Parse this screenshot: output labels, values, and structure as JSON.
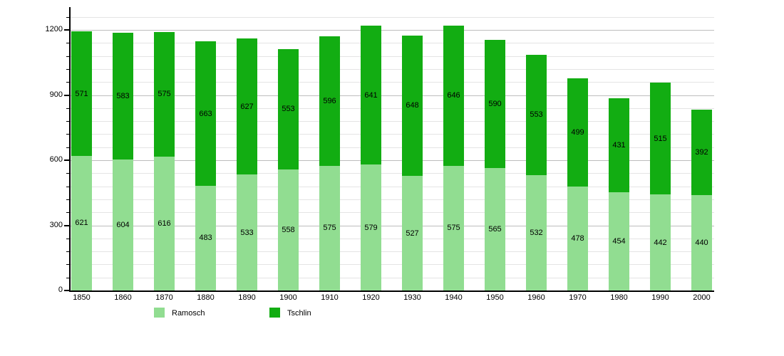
{
  "chart_data": {
    "type": "bar",
    "stacked": true,
    "categories": [
      "1850",
      "1860",
      "1870",
      "1880",
      "1890",
      "1900",
      "1910",
      "1920",
      "1930",
      "1940",
      "1950",
      "1960",
      "1970",
      "1980",
      "1990",
      "2000"
    ],
    "series": [
      {
        "name": "Ramosch",
        "color": "#91dd91",
        "values": [
          621,
          604,
          616,
          483,
          533,
          558,
          575,
          579,
          527,
          575,
          565,
          532,
          478,
          454,
          442,
          440
        ]
      },
      {
        "name": "Tschlin",
        "color": "#12ad12",
        "values": [
          571,
          583,
          575,
          663,
          627,
          553,
          596,
          641,
          648,
          646,
          590,
          553,
          499,
          431,
          515,
          392
        ]
      }
    ],
    "xlabel": "",
    "ylabel": "",
    "title": "",
    "ylim": [
      0,
      1260
    ],
    "yticks_major": [
      0,
      300,
      600,
      900,
      1200
    ],
    "ytick_minor_step": 60,
    "grid": true,
    "bar_value_labels": true,
    "legend_position": "bottom"
  },
  "colors": {
    "ramosch": "#91dd91",
    "tschlin": "#12ad12",
    "grid_minor": "#e4e4e4",
    "grid_major": "#bdbdbd",
    "axis": "#000000",
    "label_text": "#000000"
  }
}
